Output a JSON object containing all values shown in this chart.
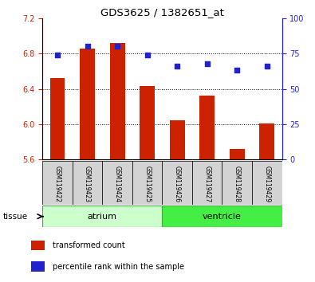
{
  "title": "GDS3625 / 1382651_at",
  "samples": [
    "GSM119422",
    "GSM119423",
    "GSM119424",
    "GSM119425",
    "GSM119426",
    "GSM119427",
    "GSM119428",
    "GSM119429"
  ],
  "transformed_count": [
    6.52,
    6.86,
    6.92,
    6.43,
    6.04,
    6.32,
    5.72,
    6.01
  ],
  "percentile_rank": [
    74,
    80,
    80,
    74,
    66,
    68,
    63,
    66
  ],
  "ylim_left": [
    5.6,
    7.2
  ],
  "ylim_right": [
    0,
    100
  ],
  "yticks_left": [
    5.6,
    6.0,
    6.4,
    6.8,
    7.2
  ],
  "yticks_right": [
    0,
    25,
    50,
    75,
    100
  ],
  "bar_color": "#cc2200",
  "dot_color": "#2222cc",
  "tissue_groups": [
    {
      "label": "atrium",
      "indices": [
        0,
        1,
        2,
        3
      ],
      "color": "#ccffcc",
      "border_color": "#44aa44"
    },
    {
      "label": "ventricle",
      "indices": [
        4,
        5,
        6,
        7
      ],
      "color": "#44ee44",
      "border_color": "#44aa44"
    }
  ],
  "ylabel_left_color": "#cc2200",
  "ylabel_right_color": "#2222cc",
  "tissue_label": "tissue",
  "legend_items": [
    {
      "label": "transformed count",
      "color": "#cc2200"
    },
    {
      "label": "percentile rank within the sample",
      "color": "#2222cc"
    }
  ],
  "bar_width": 0.5,
  "baseline": 5.6,
  "gridline_yticks": [
    6.0,
    6.4,
    6.8
  ],
  "label_gray": "#d3d3d3"
}
